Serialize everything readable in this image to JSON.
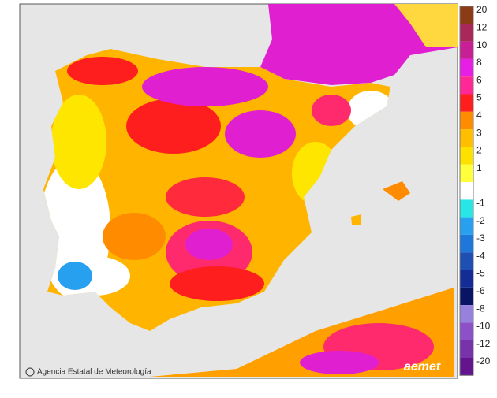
{
  "legend": {
    "items": [
      {
        "label": "20",
        "color": "#8c3c14"
      },
      {
        "label": "12",
        "color": "#a8285a"
      },
      {
        "label": "10",
        "color": "#c81e96"
      },
      {
        "label": "8",
        "color": "#e61ee6"
      },
      {
        "label": "6",
        "color": "#ff2896"
      },
      {
        "label": "5",
        "color": "#ff1e1e"
      },
      {
        "label": "4",
        "color": "#ff8c00"
      },
      {
        "label": "3",
        "color": "#ffbe00"
      },
      {
        "label": "2",
        "color": "#ffe100"
      },
      {
        "label": "1",
        "color": "#ffff3c"
      },
      {
        "label": "-1",
        "color": "#28e6e6"
      },
      {
        "label": "-2",
        "color": "#28a0f0"
      },
      {
        "label": "-3",
        "color": "#1e78dc"
      },
      {
        "label": "-4",
        "color": "#1e50b4"
      },
      {
        "label": "-5",
        "color": "#142d96"
      },
      {
        "label": "-6",
        "color": "#0a1464"
      },
      {
        "label": "-8",
        "color": "#9682dc"
      },
      {
        "label": "-10",
        "color": "#8c50c8"
      },
      {
        "label": "-12",
        "color": "#7832aa"
      },
      {
        "label": "-20",
        "color": "#64148c"
      }
    ]
  },
  "credit": "Agencia Estatal de Meteorología",
  "logo": "aemet"
}
